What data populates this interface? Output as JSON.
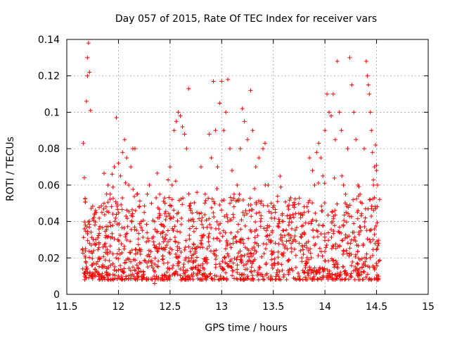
{
  "chart_data": {
    "type": "scatter",
    "title": "Day 057 of 2015, Rate Of TEC Index for receiver vars",
    "xlabel": "GPS time / hours",
    "ylabel": "ROTI / TECUs",
    "xlim": [
      11.5,
      15
    ],
    "ylim": [
      0,
      0.14
    ],
    "xticks": [
      11.5,
      12,
      12.5,
      13,
      13.5,
      14,
      14.5,
      15
    ],
    "xtick_labels": [
      "11.5",
      "12",
      "12.5",
      "13",
      "13.5",
      "14",
      "14.5",
      "15"
    ],
    "yticks": [
      0,
      0.02,
      0.04,
      0.06,
      0.08,
      0.1,
      0.12,
      0.14
    ],
    "ytick_labels": [
      "0",
      "0.02",
      "0.04",
      "0.06",
      "0.08",
      "0.1",
      "0.12",
      "0.14"
    ],
    "grid": true,
    "marker": "+",
    "color": "#ff0000",
    "series": [
      {
        "name": "ROTI",
        "points": [
          [
            11.66,
            0.083
          ],
          [
            11.67,
            0.064
          ],
          [
            11.68,
            0.038
          ],
          [
            11.69,
            0.106
          ],
          [
            11.7,
            0.12
          ],
          [
            11.7,
            0.13
          ],
          [
            11.71,
            0.138
          ],
          [
            11.72,
            0.122
          ],
          [
            11.73,
            0.101
          ],
          [
            11.67,
            0.036
          ],
          [
            11.68,
            0.02
          ],
          [
            11.7,
            0.012
          ],
          [
            11.72,
            0.028
          ],
          [
            11.74,
            0.016
          ],
          [
            11.76,
            0.024
          ],
          [
            11.78,
            0.03
          ],
          [
            11.8,
            0.012
          ],
          [
            11.82,
            0.02
          ],
          [
            11.84,
            0.045
          ],
          [
            11.86,
            0.05
          ],
          [
            11.88,
            0.048
          ],
          [
            11.9,
            0.06
          ],
          [
            11.92,
            0.055
          ],
          [
            11.94,
            0.066
          ],
          [
            11.96,
            0.07
          ],
          [
            11.98,
            0.097
          ],
          [
            12.0,
            0.072
          ],
          [
            12.02,
            0.065
          ],
          [
            12.04,
            0.078
          ],
          [
            12.06,
            0.085
          ],
          [
            12.08,
            0.075
          ],
          [
            12.1,
            0.06
          ],
          [
            12.12,
            0.07
          ],
          [
            12.14,
            0.08
          ],
          [
            12.16,
            0.08
          ],
          [
            12.18,
            0.055
          ],
          [
            12.2,
            0.048
          ],
          [
            12.22,
            0.04
          ],
          [
            12.25,
            0.045
          ],
          [
            12.28,
            0.055
          ],
          [
            12.3,
            0.06
          ],
          [
            12.32,
            0.05
          ],
          [
            12.35,
            0.04
          ],
          [
            12.38,
            0.042
          ],
          [
            12.4,
            0.055
          ],
          [
            12.42,
            0.038
          ],
          [
            12.45,
            0.03
          ],
          [
            12.48,
            0.035
          ],
          [
            12.5,
            0.07
          ],
          [
            12.52,
            0.06
          ],
          [
            12.54,
            0.09
          ],
          [
            12.56,
            0.095
          ],
          [
            12.58,
            0.1
          ],
          [
            12.6,
            0.098
          ],
          [
            12.62,
            0.092
          ],
          [
            12.64,
            0.088
          ],
          [
            12.66,
            0.08
          ],
          [
            12.68,
            0.113
          ],
          [
            12.7,
            0.05
          ],
          [
            12.73,
            0.04
          ],
          [
            12.76,
            0.045
          ],
          [
            12.8,
            0.07
          ],
          [
            12.84,
            0.055
          ],
          [
            12.88,
            0.088
          ],
          [
            12.9,
            0.075
          ],
          [
            12.92,
            0.117
          ],
          [
            12.94,
            0.09
          ],
          [
            12.96,
            0.07
          ],
          [
            12.98,
            0.105
          ],
          [
            13.0,
            0.117
          ],
          [
            13.02,
            0.09
          ],
          [
            13.04,
            0.1
          ],
          [
            13.06,
            0.118
          ],
          [
            13.08,
            0.08
          ],
          [
            13.1,
            0.068
          ],
          [
            13.12,
            0.055
          ],
          [
            13.15,
            0.06
          ],
          [
            13.18,
            0.08
          ],
          [
            13.2,
            0.102
          ],
          [
            13.22,
            0.095
          ],
          [
            13.25,
            0.085
          ],
          [
            13.28,
            0.112
          ],
          [
            13.3,
            0.09
          ],
          [
            13.33,
            0.07
          ],
          [
            13.36,
            0.075
          ],
          [
            13.4,
            0.08
          ],
          [
            13.42,
            0.083
          ],
          [
            13.45,
            0.06
          ],
          [
            13.48,
            0.05
          ],
          [
            13.52,
            0.045
          ],
          [
            13.56,
            0.04
          ],
          [
            13.6,
            0.035
          ],
          [
            13.65,
            0.038
          ],
          [
            13.7,
            0.03
          ],
          [
            13.75,
            0.028
          ],
          [
            13.8,
            0.045
          ],
          [
            13.85,
            0.075
          ],
          [
            13.88,
            0.068
          ],
          [
            13.9,
            0.06
          ],
          [
            13.92,
            0.078
          ],
          [
            13.94,
            0.083
          ],
          [
            13.96,
            0.075
          ],
          [
            13.98,
            0.065
          ],
          [
            14.0,
            0.09
          ],
          [
            14.02,
            0.11
          ],
          [
            14.04,
            0.1
          ],
          [
            14.06,
            0.098
          ],
          [
            14.08,
            0.11
          ],
          [
            14.1,
            0.085
          ],
          [
            14.12,
            0.128
          ],
          [
            14.14,
            0.1
          ],
          [
            14.16,
            0.09
          ],
          [
            14.18,
            0.06
          ],
          [
            14.2,
            0.055
          ],
          [
            14.22,
            0.08
          ],
          [
            14.24,
            0.13
          ],
          [
            14.26,
            0.115
          ],
          [
            14.28,
            0.1
          ],
          [
            14.3,
            0.085
          ],
          [
            14.32,
            0.06
          ],
          [
            14.34,
            0.055
          ],
          [
            14.36,
            0.05
          ],
          [
            14.38,
            0.08
          ],
          [
            14.4,
            0.128
          ],
          [
            14.41,
            0.12
          ],
          [
            14.42,
            0.115
          ],
          [
            14.43,
            0.11
          ],
          [
            14.44,
            0.1
          ],
          [
            14.45,
            0.09
          ],
          [
            14.46,
            0.078
          ],
          [
            14.47,
            0.06
          ],
          [
            14.48,
            0.07
          ],
          [
            14.49,
            0.082
          ],
          [
            14.5,
            0.068
          ],
          [
            14.51,
            0.06
          ],
          [
            14.52,
            0.028
          ],
          [
            14.52,
            0.01
          ],
          [
            11.75,
            0.01
          ],
          [
            11.85,
            0.015
          ],
          [
            11.95,
            0.008
          ],
          [
            12.05,
            0.012
          ],
          [
            12.15,
            0.01
          ],
          [
            12.25,
            0.009
          ],
          [
            12.35,
            0.006
          ],
          [
            12.45,
            0.01
          ],
          [
            12.55,
            0.012
          ],
          [
            12.65,
            0.01
          ],
          [
            12.75,
            0.015
          ],
          [
            12.85,
            0.008
          ],
          [
            12.95,
            0.01
          ],
          [
            13.05,
            0.008
          ],
          [
            13.15,
            0.012
          ],
          [
            13.25,
            0.01
          ],
          [
            13.35,
            0.012
          ],
          [
            13.45,
            0.009
          ],
          [
            13.55,
            0.01
          ],
          [
            13.65,
            0.012
          ],
          [
            13.75,
            0.01
          ],
          [
            13.85,
            0.015
          ],
          [
            13.95,
            0.012
          ],
          [
            14.05,
            0.01
          ],
          [
            14.15,
            0.012
          ],
          [
            14.25,
            0.01
          ],
          [
            14.35,
            0.012
          ],
          [
            14.45,
            0.008
          ],
          [
            14.5,
            0.009
          ]
        ]
      }
    ]
  }
}
